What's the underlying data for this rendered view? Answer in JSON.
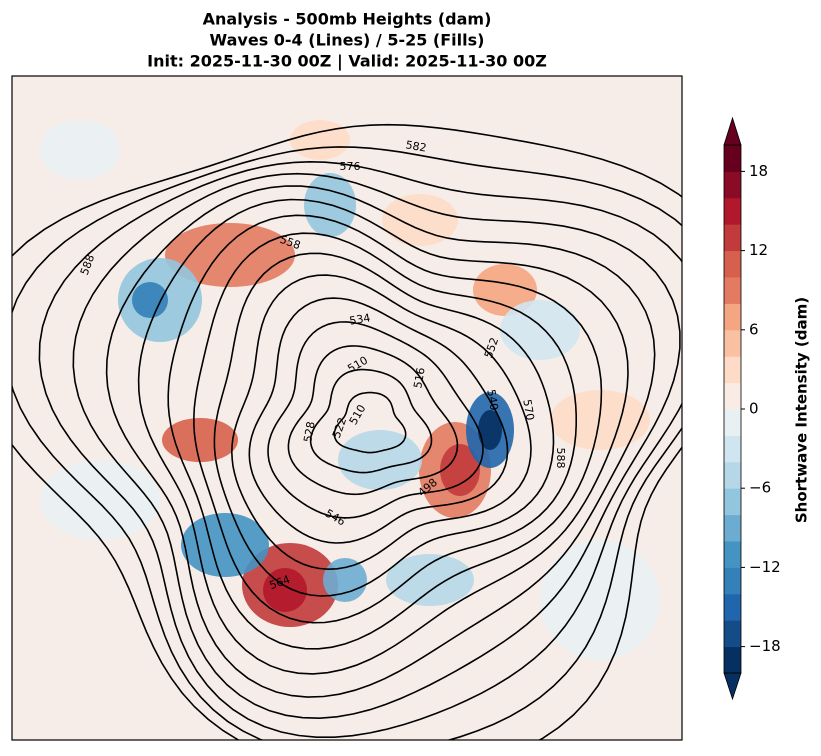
{
  "title": [
    "Analysis - 500mb Heights (dam)",
    "Waves 0-4 (Lines) / 5-25 (Fills)",
    "Init: 2025-11-30 00Z | Valid: 2025-11-30 00Z"
  ],
  "colorbar": {
    "label": "Shortwave Intensity (dam)",
    "lim": [
      -20,
      20
    ],
    "ticks": [
      {
        "value": -18,
        "label": "−18"
      },
      {
        "value": -12,
        "label": "−12"
      },
      {
        "value": -6,
        "label": "−6"
      },
      0,
      6,
      12,
      18
    ],
    "colors": [
      "#053061",
      "#134c87",
      "#2166ac",
      "#3480b9",
      "#4393c3",
      "#6dacd1",
      "#92c5de",
      "#b5d7e8",
      "#d1e5f0",
      "#e9f0f4",
      "#f9ece5",
      "#fddbc7",
      "#f9c0a2",
      "#f4a582",
      "#e27b62",
      "#d6604d",
      "#c13b3c",
      "#b2182b",
      "#8a0b25",
      "#67001f"
    ]
  },
  "contours": {
    "labels": [
      "582",
      "576",
      "558",
      "588",
      "534",
      "510",
      "516",
      "552",
      "540",
      "570",
      "588",
      "528",
      "510",
      "546",
      "564",
      "498",
      "522"
    ]
  }
}
